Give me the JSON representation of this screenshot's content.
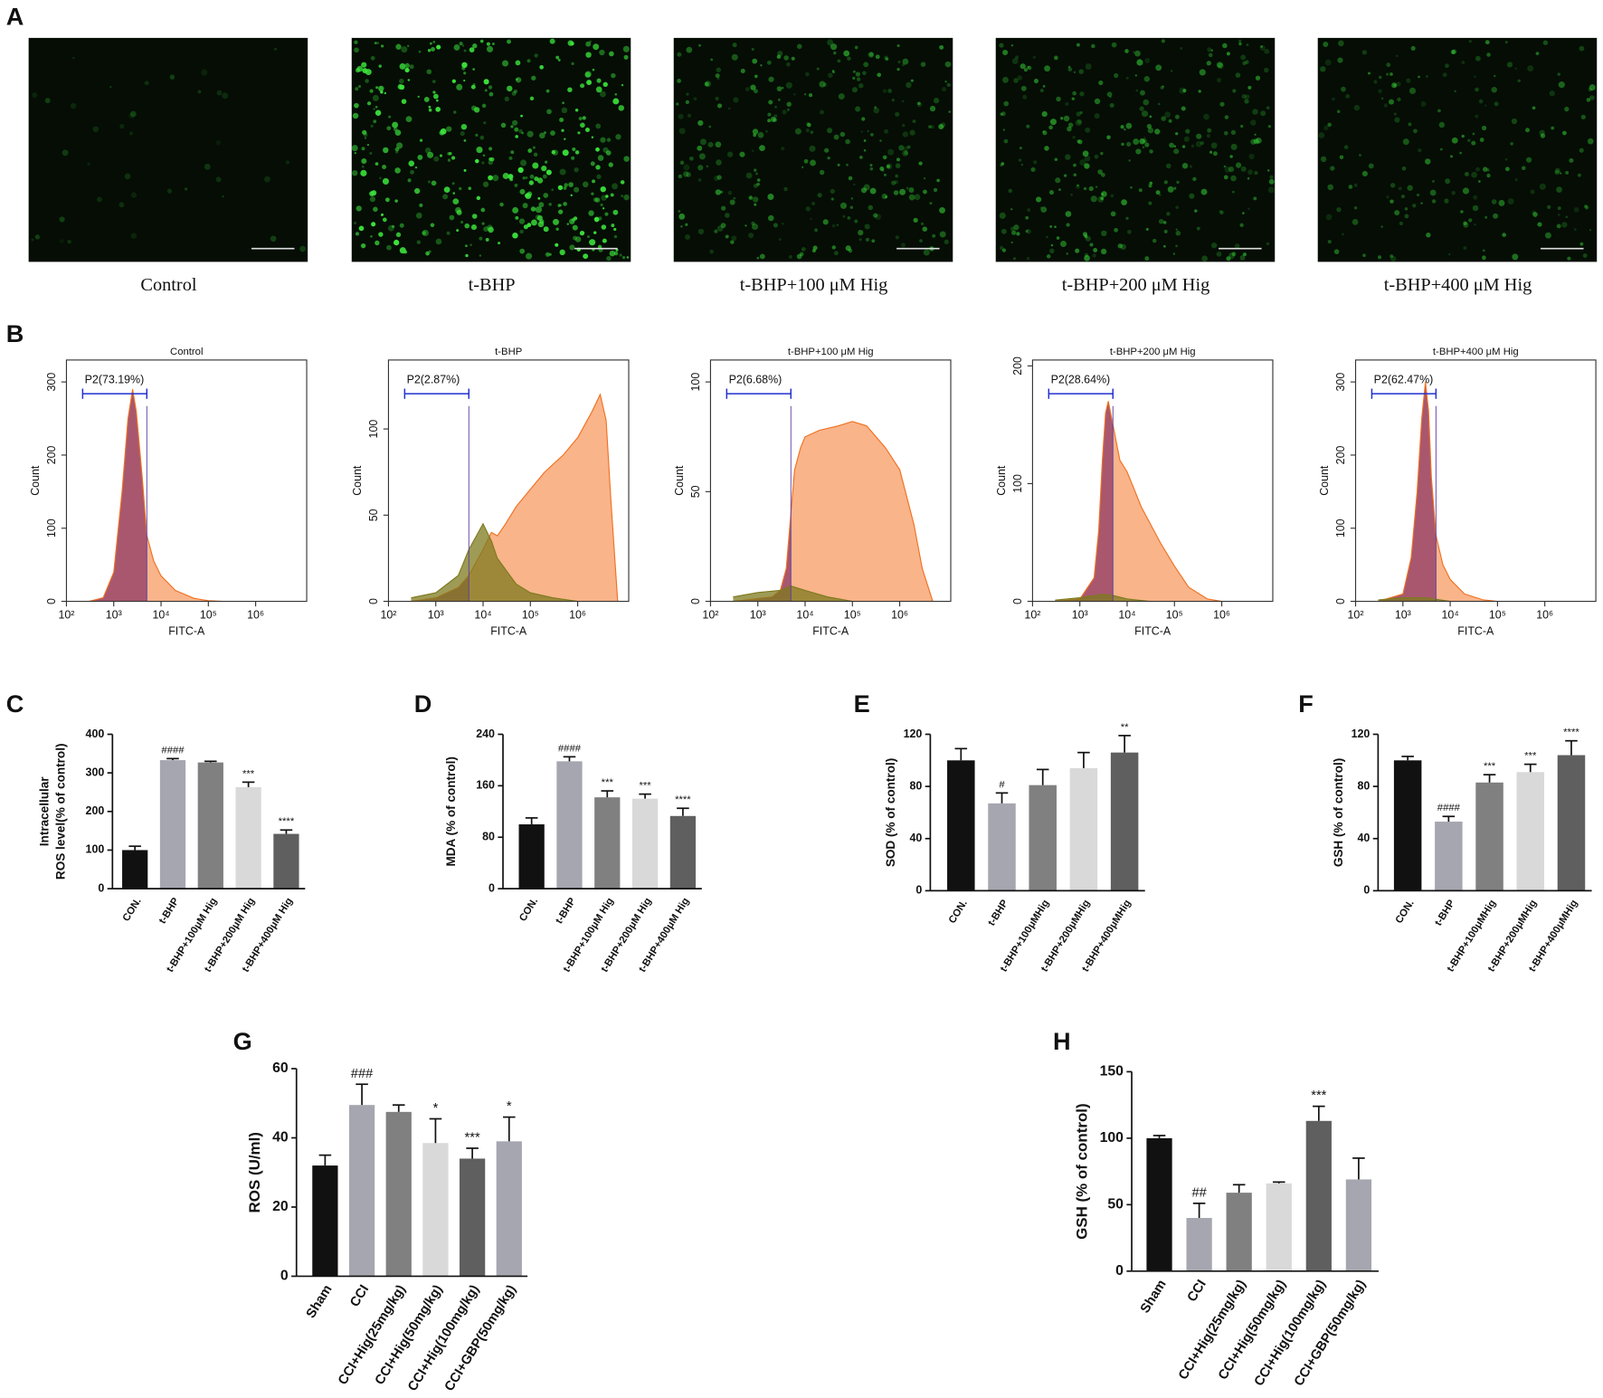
{
  "figure": {
    "panel_a_label": "A",
    "panel_b_label": "B",
    "panel_a_captions": [
      "Control",
      "t-BHP",
      "t-BHP+100 μM Hig",
      "t-BHP+200 μM Hig",
      "t-BHP+400 μM Hig"
    ]
  },
  "chart_data": [
    {
      "type": "area",
      "title": "Control",
      "gate_label": "P2(73.19%)",
      "gate_range": [
        220,
        5000
      ],
      "ylabel": "Count",
      "xlabel": "FITC-A",
      "xscale": "log",
      "xlim": [
        100,
        12000000
      ],
      "xticks": [
        {
          "value": 100,
          "label": "10²"
        },
        {
          "value": 1000,
          "label": "10³"
        },
        {
          "value": 10000,
          "label": "10⁴"
        },
        {
          "value": 100000,
          "label": "10⁵"
        },
        {
          "value": 1000000,
          "label": "10⁶"
        }
      ],
      "ylim": [
        0,
        330
      ],
      "yticks": [
        0,
        100,
        200,
        300
      ],
      "series": [
        {
          "color": "#f07020",
          "x": [
            300,
            600,
            1000,
            1500,
            2000,
            2500,
            3000,
            4000,
            5000,
            7000,
            10000,
            20000,
            50000,
            100000,
            200000
          ],
          "values": [
            0,
            5,
            40,
            150,
            250,
            290,
            260,
            170,
            90,
            55,
            35,
            15,
            4,
            1,
            0
          ]
        }
      ]
    },
    {
      "type": "area",
      "title": "t-BHP",
      "gate_label": "P2(2.87%)",
      "gate_range": [
        220,
        5000
      ],
      "ylabel": "Count",
      "xlabel": "FITC-A",
      "xscale": "log",
      "xlim": [
        100,
        12000000
      ],
      "xticks": [
        {
          "value": 100,
          "label": "10²"
        },
        {
          "value": 1000,
          "label": "10³"
        },
        {
          "value": 10000,
          "label": "10⁴"
        },
        {
          "value": 100000,
          "label": "10⁵"
        },
        {
          "value": 1000000,
          "label": "10⁶"
        }
      ],
      "ylim": [
        0,
        140
      ],
      "yticks": [
        0,
        50,
        100
      ],
      "series": [
        {
          "color": "#f07020",
          "x": [
            300,
            1000,
            3000,
            5000,
            10000,
            15000,
            20000,
            30000,
            50000,
            100000,
            200000,
            500000,
            1000000,
            2000000,
            3000000,
            4000000,
            5000000,
            7000000
          ],
          "values": [
            0,
            2,
            8,
            15,
            30,
            40,
            38,
            45,
            55,
            65,
            75,
            85,
            95,
            110,
            120,
            105,
            60,
            0
          ]
        },
        {
          "color": "#7d7a1e",
          "x": [
            300,
            1000,
            3000,
            5000,
            10000,
            15000,
            20000,
            50000,
            100000,
            300000,
            1000000
          ],
          "values": [
            2,
            5,
            15,
            30,
            45,
            35,
            25,
            10,
            5,
            2,
            0
          ]
        }
      ]
    },
    {
      "type": "area",
      "title": "t-BHP+100 μM Hig",
      "gate_label": "P2(6.68%)",
      "gate_range": [
        220,
        5000
      ],
      "ylabel": "Count",
      "xlabel": "FITC-A",
      "xscale": "log",
      "xlim": [
        100,
        12000000
      ],
      "xticks": [
        {
          "value": 100,
          "label": "10²"
        },
        {
          "value": 1000,
          "label": "10³"
        },
        {
          "value": 10000,
          "label": "10⁴"
        },
        {
          "value": 100000,
          "label": "10⁵"
        },
        {
          "value": 1000000,
          "label": "10⁶"
        }
      ],
      "ylim": [
        0,
        110
      ],
      "yticks": [
        0,
        50,
        100
      ],
      "series": [
        {
          "color": "#f07020",
          "x": [
            300,
            2000,
            3000,
            4000,
            5000,
            6000,
            8000,
            10000,
            20000,
            50000,
            100000,
            200000,
            500000,
            1000000,
            2000000,
            3000000,
            5000000
          ],
          "values": [
            0,
            2,
            5,
            15,
            40,
            60,
            70,
            75,
            78,
            80,
            82,
            80,
            70,
            60,
            35,
            15,
            0
          ]
        },
        {
          "color": "#7d7a1e",
          "x": [
            300,
            1000,
            3000,
            5000,
            10000,
            30000,
            100000
          ],
          "values": [
            2,
            4,
            5,
            7,
            5,
            2,
            0
          ]
        }
      ]
    },
    {
      "type": "area",
      "title": "t-BHP+200 μM Hig",
      "gate_label": "P2(28.64%)",
      "gate_range": [
        220,
        5000
      ],
      "ylabel": "Count",
      "xlabel": "FITC-A",
      "xscale": "log",
      "xlim": [
        100,
        12000000
      ],
      "xticks": [
        {
          "value": 100,
          "label": "10²"
        },
        {
          "value": 1000,
          "label": "10³"
        },
        {
          "value": 10000,
          "label": "10⁴"
        },
        {
          "value": 100000,
          "label": "10⁵"
        },
        {
          "value": 1000000,
          "label": "10⁶"
        }
      ],
      "ylim": [
        0,
        205
      ],
      "yticks": [
        0,
        100,
        200
      ],
      "series": [
        {
          "color": "#f07020",
          "x": [
            300,
            1000,
            2000,
            2500,
            3000,
            3500,
            4000,
            5000,
            7000,
            10000,
            20000,
            50000,
            100000,
            200000,
            500000,
            1000000
          ],
          "values": [
            0,
            2,
            20,
            60,
            120,
            160,
            170,
            150,
            120,
            110,
            80,
            50,
            30,
            12,
            2,
            0
          ]
        },
        {
          "color": "#7d7a1e",
          "x": [
            300,
            1000,
            3000,
            5000,
            10000,
            30000
          ],
          "values": [
            1,
            3,
            6,
            5,
            2,
            0
          ]
        }
      ]
    },
    {
      "type": "area",
      "title": "t-BHP+400 μM Hig",
      "gate_label": "P2(62.47%)",
      "gate_range": [
        220,
        5000
      ],
      "ylabel": "Count",
      "xlabel": "FITC-A",
      "xscale": "log",
      "xlim": [
        100,
        12000000
      ],
      "xticks": [
        {
          "value": 100,
          "label": "10²"
        },
        {
          "value": 1000,
          "label": "10³"
        },
        {
          "value": 10000,
          "label": "10⁴"
        },
        {
          "value": 100000,
          "label": "10⁵"
        },
        {
          "value": 1000000,
          "label": "10⁶"
        }
      ],
      "ylim": [
        0,
        330
      ],
      "yticks": [
        0,
        100,
        200,
        300
      ],
      "series": [
        {
          "color": "#f07020",
          "x": [
            300,
            1000,
            1500,
            2000,
            2500,
            3000,
            3500,
            4000,
            5000,
            7000,
            10000,
            20000,
            50000,
            100000
          ],
          "values": [
            0,
            10,
            60,
            150,
            250,
            300,
            260,
            170,
            90,
            50,
            30,
            10,
            2,
            0
          ]
        },
        {
          "color": "#7d7a1e",
          "x": [
            300,
            1000,
            3000,
            10000
          ],
          "values": [
            2,
            5,
            5,
            0
          ]
        }
      ]
    },
    {
      "type": "bar",
      "panel_label": "C",
      "ylabel": [
        "Intracellular",
        "ROS level(% of control)"
      ],
      "categories": [
        "CON.",
        "t-BHP",
        "t-BHP+100μM Hig",
        "t-BHP+200μM Hig",
        "t-BHP+400μM Hig"
      ],
      "values": [
        100,
        333,
        327,
        263,
        142
      ],
      "errors": [
        10,
        4,
        3,
        13,
        10
      ],
      "annotations": [
        null,
        "####",
        null,
        "***",
        "****"
      ],
      "colors": [
        "#111111",
        "#a6a6b0",
        "#808080",
        "#d9d9d9",
        "#5f5f5f"
      ],
      "ylim": [
        0,
        400
      ],
      "yticks": [
        0,
        100,
        200,
        300,
        400
      ]
    },
    {
      "type": "bar",
      "panel_label": "D",
      "ylabel": [
        "MDA (% of control)"
      ],
      "categories": [
        "CON.",
        "t-BHP",
        "t-BHP+100μM Hig",
        "t-BHP+200μM Hig",
        "t-BHP+400μM Hig"
      ],
      "values": [
        100,
        198,
        142,
        140,
        113
      ],
      "errors": [
        10,
        7,
        10,
        7,
        12
      ],
      "annotations": [
        null,
        "####",
        "***",
        "***",
        "****"
      ],
      "colors": [
        "#111111",
        "#a6a6b0",
        "#808080",
        "#d9d9d9",
        "#5f5f5f"
      ],
      "ylim": [
        0,
        240
      ],
      "yticks": [
        0,
        80,
        160,
        240
      ]
    },
    {
      "type": "bar",
      "panel_label": "E",
      "ylabel": [
        "SOD (% of control)"
      ],
      "categories": [
        "CON.",
        "t-BHP",
        "t-BHP+100μMHig",
        "t-BHP+200μMHig",
        "t-BHP+400μMHig"
      ],
      "values": [
        100,
        67,
        81,
        94,
        106
      ],
      "errors": [
        9,
        8,
        12,
        12,
        13
      ],
      "annotations": [
        null,
        "#",
        null,
        null,
        "**"
      ],
      "colors": [
        "#111111",
        "#a6a6b0",
        "#808080",
        "#d9d9d9",
        "#5f5f5f"
      ],
      "ylim": [
        0,
        120
      ],
      "yticks": [
        0,
        40,
        80,
        120
      ]
    },
    {
      "type": "bar",
      "panel_label": "F",
      "ylabel": [
        "GSH (% of control)"
      ],
      "categories": [
        "CON.",
        "t-BHP",
        "t-BHP+100μMHig",
        "t-BHP+200μMHig",
        "t-BHP+400μMHig"
      ],
      "values": [
        100,
        53,
        83,
        91,
        104
      ],
      "errors": [
        3,
        4,
        6,
        6,
        11
      ],
      "annotations": [
        null,
        "####",
        "***",
        "***",
        "****"
      ],
      "colors": [
        "#111111",
        "#a6a6b0",
        "#808080",
        "#d9d9d9",
        "#5f5f5f"
      ],
      "ylim": [
        0,
        120
      ],
      "yticks": [
        0,
        40,
        80,
        120
      ]
    },
    {
      "type": "bar",
      "panel_label": "G",
      "ylabel": [
        "ROS (U/ml)"
      ],
      "categories": [
        "Sham",
        "CCI",
        "CCI+Hig(25mg/kg)",
        "CCI+Hig(50mg/kg)",
        "CCI+Hig(100mg/kg)",
        "CCI+GBP(50mg/kg)"
      ],
      "values": [
        32,
        49.5,
        47.5,
        38.5,
        34,
        39
      ],
      "errors": [
        3,
        6,
        2,
        7,
        3,
        7
      ],
      "annotations": [
        null,
        "###",
        null,
        "*",
        "***",
        "*"
      ],
      "colors": [
        "#111111",
        "#a6a6b0",
        "#808080",
        "#d9d9d9",
        "#5f5f5f",
        "#a6a6b0"
      ],
      "ylim": [
        0,
        60
      ],
      "yticks": [
        0,
        20,
        40,
        60
      ]
    },
    {
      "type": "bar",
      "panel_label": "H",
      "ylabel": [
        "GSH (% of control)"
      ],
      "categories": [
        "Sham",
        "CCI",
        "CCI+Hig(25mg/kg)",
        "CCI+Hig(50mg/kg)",
        "CCI+Hig(100mg/kg)",
        "CCI+GBP(50mg/kg)"
      ],
      "values": [
        100,
        40,
        59,
        66,
        113,
        69
      ],
      "errors": [
        2,
        11,
        6,
        1,
        11,
        16
      ],
      "annotations": [
        null,
        "##",
        null,
        null,
        "***",
        null
      ],
      "colors": [
        "#111111",
        "#a6a6b0",
        "#808080",
        "#d9d9d9",
        "#5f5f5f",
        "#a6a6b0"
      ],
      "ylim": [
        0,
        150
      ],
      "yticks": [
        0,
        50,
        100,
        150
      ]
    }
  ]
}
